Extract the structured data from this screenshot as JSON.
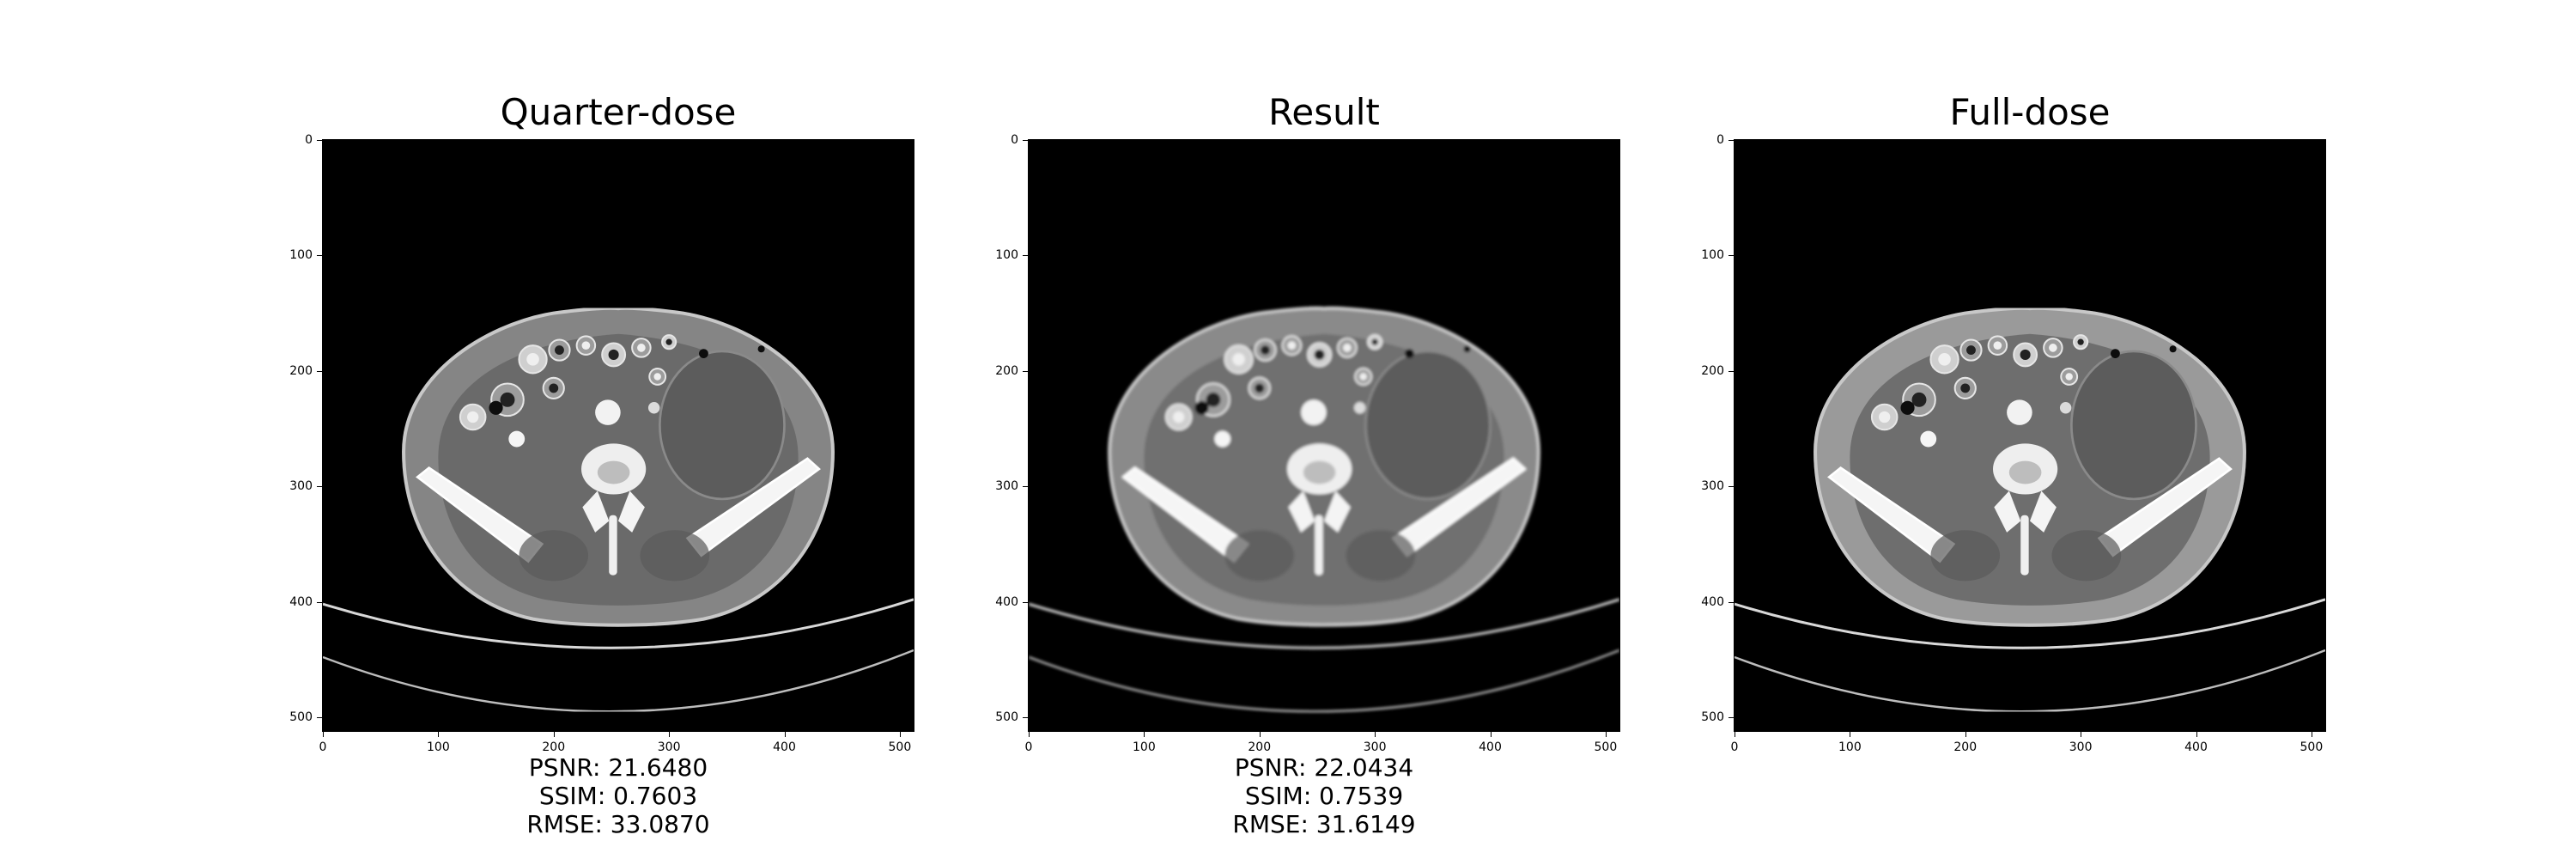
{
  "panels": [
    {
      "title": "Quarter-dose",
      "metrics": [
        "PSNR: 21.6480",
        "SSIM: 0.7603",
        "RMSE: 33.0870"
      ],
      "look": "noisy-soft"
    },
    {
      "title": "Result",
      "metrics": [
        "PSNR: 22.0434",
        "SSIM: 0.7539",
        "RMSE: 31.6149"
      ],
      "look": "smooth"
    },
    {
      "title": "Full-dose",
      "metrics": [],
      "look": "sharp-noisy"
    }
  ],
  "axis": {
    "y_ticks": [
      "0",
      "100",
      "200",
      "300",
      "400",
      "500"
    ],
    "x_ticks": [
      "0",
      "100",
      "200",
      "300",
      "400",
      "500"
    ]
  },
  "image_content": "axial abdominal-pelvic CT slice (grayscale)"
}
